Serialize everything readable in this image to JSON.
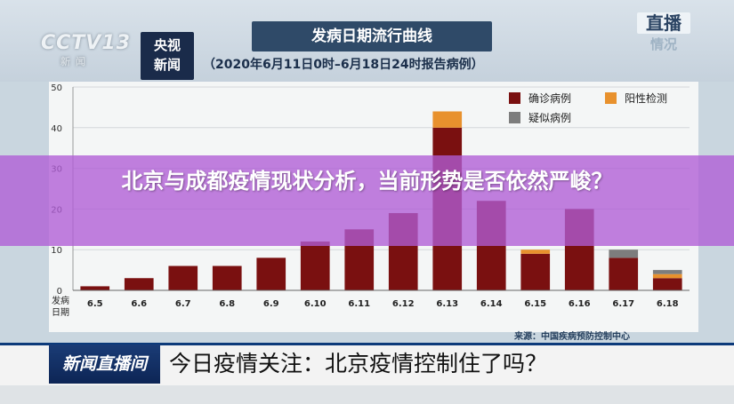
{
  "header": {
    "logo_text": "CCTV",
    "logo_channel": "13",
    "logo_sub": "新闻",
    "news_box": [
      "央视",
      "新闻"
    ],
    "title": "发病日期流行曲线",
    "subtitle": "（2020年6月11日0时–6月18日24时报告病例）",
    "live": [
      "直播",
      "情况"
    ]
  },
  "overlay": {
    "headline": "北京与成都疫情现状分析，当前形势是否依然严峻？"
  },
  "source": "来源：中国疾病预防控制中心",
  "ticker": {
    "label": "新闻直播间",
    "text": "今日疫情关注：北京疫情控制住了吗？"
  },
  "chart_data": {
    "type": "bar",
    "stacked": true,
    "categories": [
      "6.5",
      "6.6",
      "6.7",
      "6.8",
      "6.9",
      "6.10",
      "6.11",
      "6.12",
      "6.13",
      "6.14",
      "6.15",
      "6.16",
      "6.17",
      "6.18"
    ],
    "series": [
      {
        "name": "确诊病例",
        "color": "#7a1010",
        "values": [
          1,
          3,
          6,
          6,
          8,
          12,
          15,
          19,
          40,
          22,
          9,
          20,
          8,
          3
        ]
      },
      {
        "name": "阳性检测",
        "color": "#e8912d",
        "values": [
          0,
          0,
          0,
          0,
          0,
          0,
          0,
          0,
          4,
          0,
          1,
          0,
          0,
          1
        ]
      },
      {
        "name": "疑似病例",
        "color": "#7d7d7d",
        "values": [
          0,
          0,
          0,
          0,
          0,
          0,
          0,
          0,
          0,
          0,
          0,
          0,
          2,
          1
        ]
      }
    ],
    "xlabel": "发病日期",
    "ylim": [
      0,
      50
    ],
    "yticks": [
      0,
      10,
      20,
      30,
      40,
      50
    ],
    "legend": "top-right",
    "grid": true
  }
}
